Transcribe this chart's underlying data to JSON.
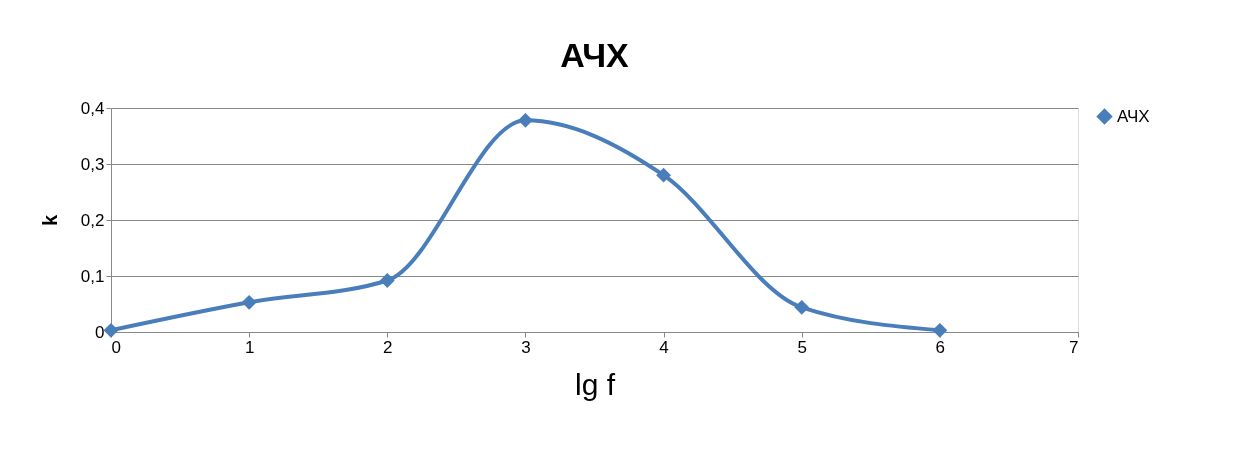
{
  "chart_data": {
    "type": "line",
    "title": "АЧХ",
    "xlabel": "lg    f",
    "ylabel": "k",
    "x": [
      0,
      1,
      2,
      3,
      4,
      5,
      6
    ],
    "series": [
      {
        "name": "АЧХ",
        "color": "#4a7ebb",
        "values": [
          0.003,
          0.053,
          0.092,
          0.378,
          0.28,
          0.044,
          0.003
        ]
      }
    ],
    "xlim": [
      0,
      7
    ],
    "xticks": [
      0,
      1,
      2,
      3,
      4,
      5,
      6,
      7
    ],
    "ylim": [
      0,
      0.4
    ],
    "yticks": [
      0,
      {
        "value": 0.1,
        "label": "0,1"
      },
      {
        "value": 0.2,
        "label": "0,2"
      },
      {
        "value": 0.3,
        "label": "0,3"
      },
      {
        "value": 0.4,
        "label": "0,4"
      }
    ],
    "grid": "y",
    "legend": "right",
    "marker": "diamond",
    "line_style": "solid"
  }
}
